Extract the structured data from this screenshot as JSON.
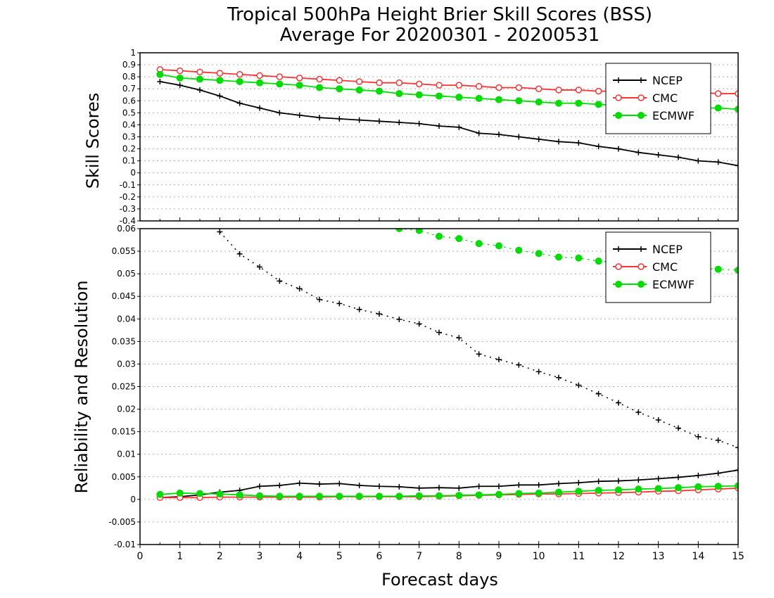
{
  "title_line1": "Tropical 500hPa Height Brier Skill Scores (BSS)",
  "title_line2": "Average For 20200301 - 20200531",
  "xlabel": "Forecast days",
  "chart_data": [
    {
      "type": "line",
      "ylabel": "Skill Scores",
      "ylim": [
        -0.4,
        1.0
      ],
      "yticks": [
        "1",
        "0.9",
        "0.8",
        "0.7",
        "0.6",
        "0.5",
        "0.4",
        "0.3",
        "0.2",
        "0.1",
        "0",
        "-0.1",
        "-0.2",
        "-0.3",
        "-0.4"
      ],
      "xlim": [
        0,
        15
      ],
      "grid": true,
      "legend_position": "top-right",
      "series": [
        {
          "name": "NCEP",
          "color": "#000000",
          "marker": "plus",
          "line": "solid",
          "x": [
            0.5,
            1,
            1.5,
            2,
            2.5,
            3,
            3.5,
            4,
            4.5,
            5,
            5.5,
            6,
            6.5,
            7,
            7.5,
            8,
            8.5,
            9,
            9.5,
            10,
            10.5,
            11,
            11.5,
            12,
            12.5,
            13,
            13.5,
            14,
            14.5,
            15
          ],
          "y": [
            0.76,
            0.73,
            0.69,
            0.64,
            0.58,
            0.54,
            0.5,
            0.48,
            0.46,
            0.45,
            0.44,
            0.43,
            0.42,
            0.41,
            0.39,
            0.38,
            0.33,
            0.32,
            0.3,
            0.28,
            0.26,
            0.25,
            0.22,
            0.2,
            0.17,
            0.15,
            0.13,
            0.1,
            0.09,
            0.06
          ]
        },
        {
          "name": "CMC",
          "color": "#ff3333",
          "marker": "open-circle",
          "line": "solid",
          "x": [
            0.5,
            1,
            1.5,
            2,
            2.5,
            3,
            3.5,
            4,
            4.5,
            5,
            5.5,
            6,
            6.5,
            7,
            7.5,
            8,
            8.5,
            9,
            9.5,
            10,
            10.5,
            11,
            11.5,
            12,
            12.5,
            13,
            13.5,
            14,
            14.5,
            15
          ],
          "y": [
            0.86,
            0.85,
            0.84,
            0.83,
            0.82,
            0.81,
            0.8,
            0.79,
            0.78,
            0.77,
            0.76,
            0.75,
            0.75,
            0.74,
            0.73,
            0.73,
            0.72,
            0.71,
            0.71,
            0.7,
            0.69,
            0.69,
            0.68,
            0.68,
            0.68,
            0.67,
            0.67,
            0.67,
            0.66,
            0.66
          ]
        },
        {
          "name": "ECMWF",
          "color": "#00dd00",
          "marker": "filled-circle",
          "line": "solid",
          "x": [
            0.5,
            1,
            1.5,
            2,
            2.5,
            3,
            3.5,
            4,
            4.5,
            5,
            5.5,
            6,
            6.5,
            7,
            7.5,
            8,
            8.5,
            9,
            9.5,
            10,
            10.5,
            11,
            11.5,
            12,
            12.5,
            13,
            13.5,
            14,
            14.5,
            15
          ],
          "y": [
            0.82,
            0.79,
            0.78,
            0.77,
            0.76,
            0.75,
            0.74,
            0.73,
            0.71,
            0.7,
            0.69,
            0.68,
            0.66,
            0.65,
            0.64,
            0.63,
            0.62,
            0.61,
            0.6,
            0.59,
            0.58,
            0.58,
            0.57,
            0.56,
            0.56,
            0.55,
            0.55,
            0.54,
            0.54,
            0.53
          ]
        }
      ]
    },
    {
      "type": "line",
      "ylabel": "Reliability and Resolution",
      "ylim": [
        -0.01,
        0.06
      ],
      "yticks": [
        "0.06",
        "0.055",
        "0.05",
        "0.045",
        "0.04",
        "0.035",
        "0.03",
        "0.025",
        "0.02",
        "0.015",
        "0.01",
        "0.005",
        "0",
        "-0.005",
        "-0.01"
      ],
      "xlim": [
        0,
        15
      ],
      "xticks": [
        "0",
        "1",
        "2",
        "3",
        "4",
        "5",
        "6",
        "7",
        "8",
        "9",
        "10",
        "11",
        "12",
        "13",
        "14",
        "15"
      ],
      "grid": true,
      "legend_position": "top-right",
      "legend": [
        {
          "name": "NCEP",
          "color": "#000000",
          "marker": "plus"
        },
        {
          "name": "CMC",
          "color": "#ff3333",
          "marker": "open-circle"
        },
        {
          "name": "ECMWF",
          "color": "#00dd00",
          "marker": "filled-circle"
        }
      ],
      "series": [
        {
          "name": "NCEP resolution",
          "color": "#000000",
          "marker": "plus",
          "line": "dotted",
          "x": [
            2,
            2.5,
            3,
            3.5,
            4,
            4.5,
            5,
            5.5,
            6,
            6.5,
            7,
            7.5,
            8,
            8.5,
            9,
            9.5,
            10,
            10.5,
            11,
            11.5,
            12,
            12.5,
            13,
            13.5,
            14,
            14.5,
            15
          ],
          "y": [
            0.0593,
            0.0544,
            0.0515,
            0.0484,
            0.0467,
            0.0443,
            0.0434,
            0.0421,
            0.0411,
            0.0399,
            0.0389,
            0.037,
            0.0358,
            0.0322,
            0.031,
            0.0298,
            0.0283,
            0.027,
            0.0253,
            0.0234,
            0.0214,
            0.0193,
            0.0176,
            0.0158,
            0.0139,
            0.0131,
            0.0115
          ]
        },
        {
          "name": "ECMWF resolution",
          "color": "#00dd00",
          "marker": "filled-circle",
          "line": "dotted",
          "x": [
            6.5,
            7,
            7.5,
            8,
            8.5,
            9,
            9.5,
            10,
            10.5,
            11,
            11.5,
            12,
            12.5,
            13,
            13.5,
            14,
            14.5,
            15
          ],
          "y": [
            0.06,
            0.0596,
            0.0583,
            0.0578,
            0.0567,
            0.0562,
            0.0552,
            0.0545,
            0.0537,
            0.0535,
            0.0528,
            0.0525,
            0.0522,
            0.0518,
            0.0515,
            0.0513,
            0.051,
            0.0508
          ]
        },
        {
          "name": "NCEP reliability",
          "color": "#000000",
          "marker": "plus",
          "line": "solid",
          "x": [
            0.5,
            1,
            1.5,
            2,
            2.5,
            3,
            3.5,
            4,
            4.5,
            5,
            5.5,
            6,
            6.5,
            7,
            7.5,
            8,
            8.5,
            9,
            9.5,
            10,
            10.5,
            11,
            11.5,
            12,
            12.5,
            13,
            13.5,
            14,
            14.5,
            15
          ],
          "y": [
            0.0004,
            0.0006,
            0.001,
            0.0016,
            0.002,
            0.0029,
            0.0031,
            0.0036,
            0.0034,
            0.0035,
            0.0031,
            0.0029,
            0.0028,
            0.0025,
            0.0026,
            0.0025,
            0.0029,
            0.0029,
            0.0032,
            0.0032,
            0.0035,
            0.0037,
            0.004,
            0.0041,
            0.0043,
            0.0046,
            0.0049,
            0.0053,
            0.0058,
            0.0065
          ]
        },
        {
          "name": "CMC reliability",
          "color": "#ff3333",
          "marker": "open-circle",
          "line": "solid",
          "x": [
            0.5,
            1,
            1.5,
            2,
            2.5,
            3,
            3.5,
            4,
            4.5,
            5,
            5.5,
            6,
            6.5,
            7,
            7.5,
            8,
            8.5,
            9,
            9.5,
            10,
            10.5,
            11,
            11.5,
            12,
            12.5,
            13,
            13.5,
            14,
            14.5,
            15
          ],
          "y": [
            0.0004,
            0.0004,
            0.0004,
            0.0005,
            0.0005,
            0.0005,
            0.0005,
            0.0005,
            0.0005,
            0.0006,
            0.0006,
            0.0006,
            0.0006,
            0.0006,
            0.0007,
            0.0008,
            0.0009,
            0.001,
            0.0011,
            0.0012,
            0.0012,
            0.0013,
            0.0014,
            0.0015,
            0.0016,
            0.0018,
            0.0019,
            0.0021,
            0.0023,
            0.0025
          ]
        },
        {
          "name": "ECMWF reliability",
          "color": "#00dd00",
          "marker": "filled-circle",
          "line": "solid",
          "x": [
            0.5,
            1,
            1.5,
            2,
            2.5,
            3,
            3.5,
            4,
            4.5,
            5,
            5.5,
            6,
            6.5,
            7,
            7.5,
            8,
            8.5,
            9,
            9.5,
            10,
            10.5,
            11,
            11.5,
            12,
            12.5,
            13,
            13.5,
            14,
            14.5,
            15
          ],
          "y": [
            0.0011,
            0.0014,
            0.0013,
            0.0012,
            0.001,
            0.0008,
            0.0007,
            0.0007,
            0.0007,
            0.0007,
            0.0007,
            0.0007,
            0.0007,
            0.0008,
            0.0008,
            0.0009,
            0.001,
            0.0011,
            0.0013,
            0.0014,
            0.0016,
            0.0018,
            0.002,
            0.0021,
            0.0023,
            0.0024,
            0.0026,
            0.0028,
            0.0029,
            0.003
          ]
        }
      ]
    }
  ]
}
